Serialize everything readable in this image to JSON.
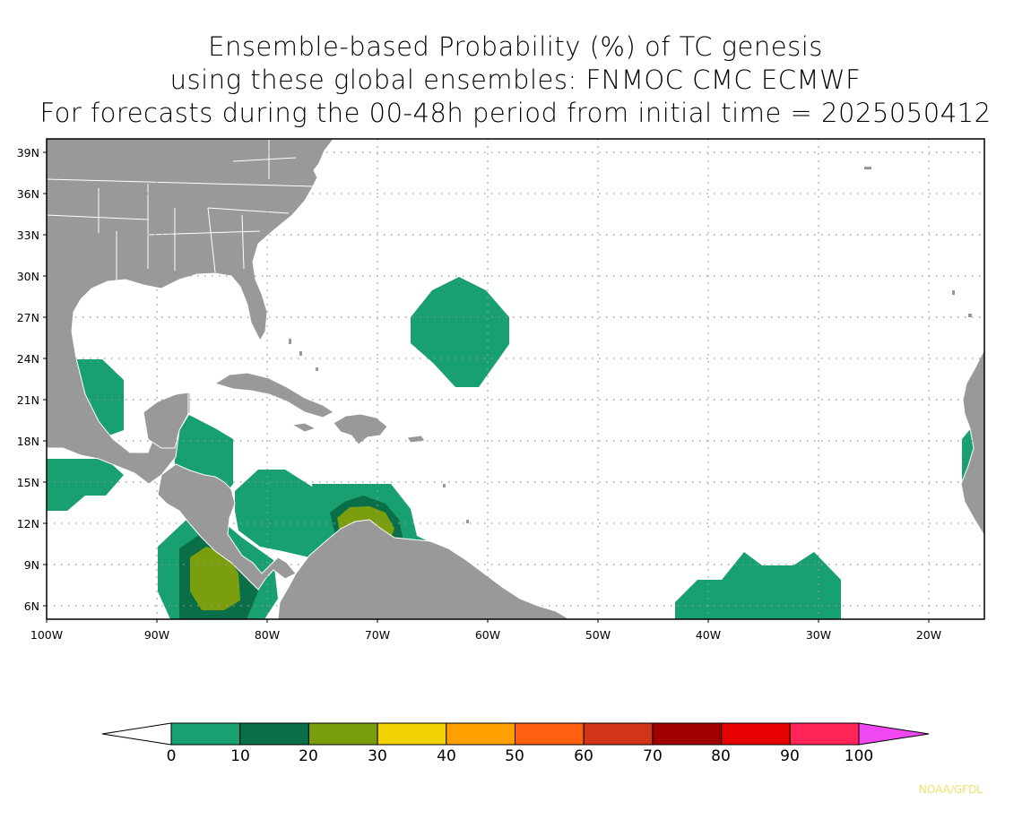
{
  "header": {
    "line1": "Ensemble-based Probability (%) of TC genesis",
    "line2": "using these global ensembles:   FNMOC CMC ECMWF",
    "line3": "For forecasts during the 00-48h period from initial time = 2025050412"
  },
  "map": {
    "lat_labels": [
      "39N",
      "36N",
      "33N",
      "30N",
      "27N",
      "24N",
      "21N",
      "18N",
      "15N",
      "12N",
      "9N",
      "6N"
    ],
    "lon_labels": [
      "100W",
      "90W",
      "80W",
      "70W",
      "60W",
      "50W",
      "40W",
      "30W",
      "20W"
    ],
    "land_color": "#999999",
    "coast_color": "#ffffff",
    "grid": "dotted",
    "probability_areas": [
      {
        "region": "Gulf of Mexico (west)",
        "category": "10-20"
      },
      {
        "region": "Bay of Campeche / Yucatan",
        "category": "10-20"
      },
      {
        "region": "Eastern Pacific off Guatemala",
        "category": "10-20"
      },
      {
        "region": "Eastern Pacific off Costa Rica",
        "category": "20-30"
      },
      {
        "region": "Western Caribbean",
        "category": "10-20"
      },
      {
        "region": "Southern Caribbean off Venezuela",
        "category": "20-30"
      },
      {
        "region": "Central Atlantic near 26N 62W",
        "category": "10-20"
      },
      {
        "region": "Tropical Atlantic near 8N 35W",
        "category": "10-20"
      },
      {
        "region": "Off West Africa near 17N 16W",
        "category": "10-20"
      }
    ]
  },
  "colorbar": {
    "labels": [
      "0",
      "10",
      "20",
      "30",
      "40",
      "50",
      "60",
      "70",
      "80",
      "90",
      "100"
    ],
    "colors": [
      "#ffffff",
      "#18a070",
      "#0a6e46",
      "#7a9e0e",
      "#f2d200",
      "#ffa000",
      "#ff6010",
      "#d23418",
      "#a00000",
      "#e60000",
      "#ff2458",
      "#f048f0"
    ]
  },
  "credit": "NOAA/GFDL"
}
